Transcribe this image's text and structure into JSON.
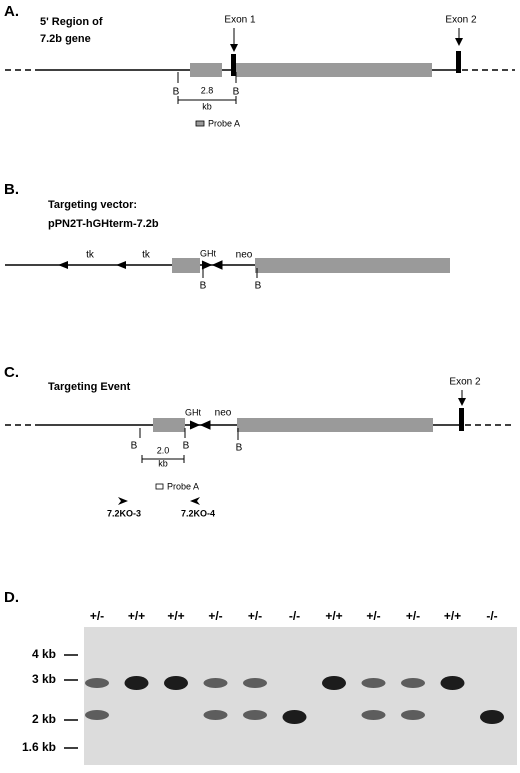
{
  "panel_a": {
    "label": "A.",
    "title": [
      "5' Region of",
      "7.2b gene"
    ],
    "exon1": "Exon 1",
    "exon2": "Exon 2",
    "sites": [
      "B",
      "B"
    ],
    "distance": [
      "2.8",
      "kb"
    ],
    "probe": "Probe A"
  },
  "panel_b": {
    "label": "B.",
    "title": [
      "Targeting vector:",
      "pPN2T-hGHterm-7.2b"
    ],
    "markers": [
      "tk",
      "tk",
      "GHt",
      "neo"
    ],
    "sites": [
      "B",
      "B"
    ]
  },
  "panel_c": {
    "label": "C.",
    "title": "Targeting Event",
    "exon2": "Exon 2",
    "markers": [
      "GHt",
      "neo"
    ],
    "sites": [
      "B",
      "B",
      "B"
    ],
    "distance": [
      "2.0",
      "kb"
    ],
    "probe": "Probe A",
    "primers": [
      "7.2KO-3",
      "7.2KO-4"
    ]
  },
  "panel_d": {
    "label": "D.",
    "genotypes": [
      "+/-",
      "+/+",
      "+/+",
      "+/-",
      "+/-",
      "-/-",
      "+/+",
      "+/-",
      "+/-",
      "+/+",
      "-/-"
    ],
    "size_markers": [
      "4 kb",
      "3 kb",
      "2 kb",
      "1.6 kb"
    ]
  }
}
